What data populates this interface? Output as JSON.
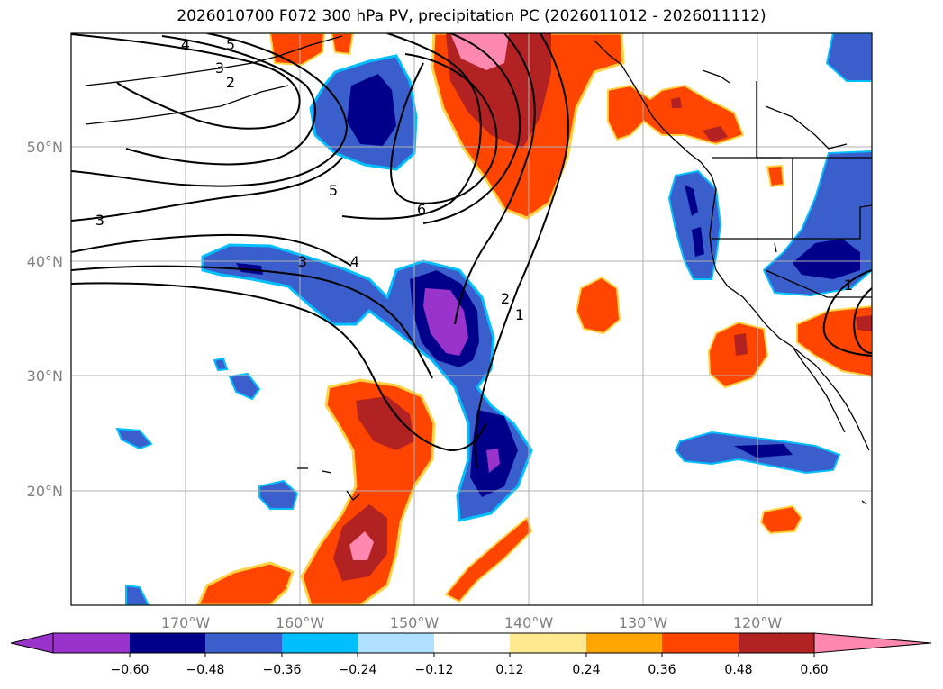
{
  "title": "2026010700 F072 300 hPa PV, precipitation PC (2026011012 - 2026011112)",
  "map": {
    "lat_labels": [
      "50°N",
      "40°N",
      "30°N",
      "20°N"
    ],
    "lon_labels": [
      "170°W",
      "160°W",
      "150°W",
      "140°W",
      "130°W",
      "120°W"
    ]
  },
  "contours": {
    "labels": [
      "4",
      "5",
      "3",
      "2",
      "5",
      "6",
      "3",
      "3",
      "4",
      "2",
      "1",
      "1"
    ]
  },
  "colorbar": {
    "colors": [
      "#9933cc",
      "#00008b",
      "#3a5fcd",
      "#00bfff",
      "#b0e0ff",
      "#ffffff",
      "#ffe98f",
      "#ffa500",
      "#ff4500",
      "#b22222",
      "#ff88b0"
    ],
    "tick_labels": [
      "−0.60",
      "−0.48",
      "−0.36",
      "−0.24",
      "−0.12",
      "0.12",
      "0.24",
      "0.36",
      "0.48",
      "0.60"
    ]
  }
}
